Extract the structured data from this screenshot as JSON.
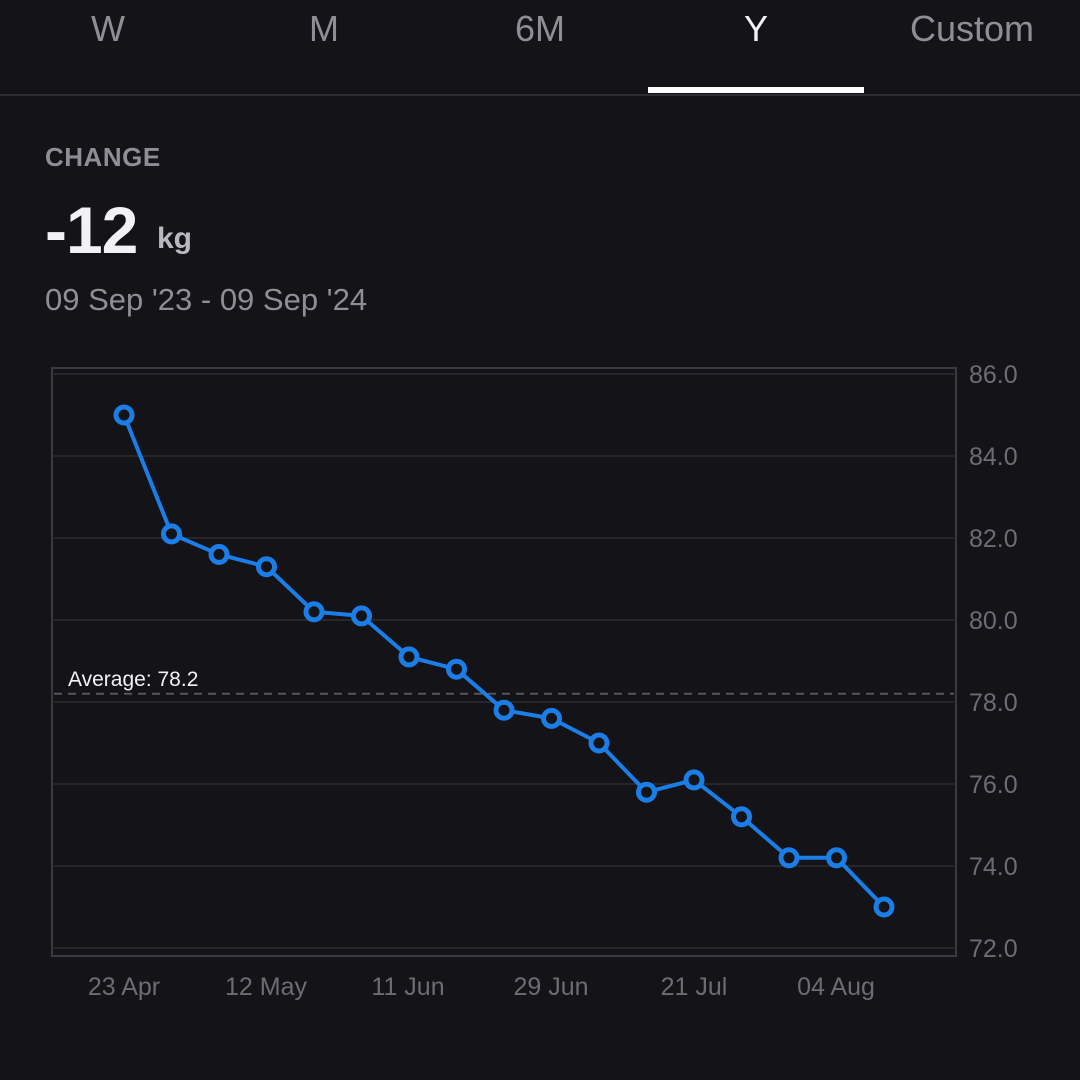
{
  "tabs": [
    {
      "label": "W",
      "active": false
    },
    {
      "label": "M",
      "active": false
    },
    {
      "label": "6M",
      "active": false
    },
    {
      "label": "Y",
      "active": true
    },
    {
      "label": "Custom",
      "active": false
    }
  ],
  "summary": {
    "label": "CHANGE",
    "value": "-12",
    "unit": "kg",
    "date_range": "09 Sep '23 - 09 Sep '24"
  },
  "colors": {
    "background": "#131318",
    "line": "#1a7ee6",
    "grid": "#2c2c33",
    "axis_text": "#6c6c74"
  },
  "chart_data": {
    "type": "line",
    "ylim": [
      72,
      86
    ],
    "y_ticks": [
      "72.0",
      "74.0",
      "76.0",
      "78.0",
      "80.0",
      "82.0",
      "84.0",
      "86.0"
    ],
    "x_tick_labels": [
      "23 Apr",
      "12 May",
      "11 Jun",
      "29 Jun",
      "21 Jul",
      "04 Aug"
    ],
    "average": {
      "label": "Average: 78.2",
      "value": 78.2
    },
    "grid": true,
    "series": [
      {
        "values": [
          85.0,
          82.1,
          81.6,
          81.3,
          80.2,
          80.1,
          79.1,
          78.8,
          77.8,
          77.6,
          77.0,
          75.8,
          76.1,
          75.2,
          74.2,
          74.2,
          73.0
        ]
      }
    ]
  }
}
